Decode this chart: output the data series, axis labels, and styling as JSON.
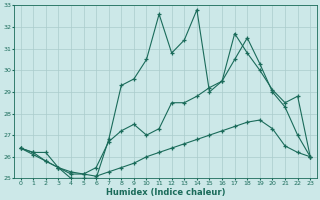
{
  "xlabel": "Humidex (Indice chaleur)",
  "bg_color": "#cce8e8",
  "grid_color": "#aacccc",
  "line_color": "#1a6b5a",
  "xlim": [
    -0.5,
    23.5
  ],
  "ylim": [
    25,
    33
  ],
  "yticks": [
    25,
    26,
    27,
    28,
    29,
    30,
    31,
    32,
    33
  ],
  "xticks": [
    0,
    1,
    2,
    3,
    4,
    5,
    6,
    7,
    8,
    9,
    10,
    11,
    12,
    13,
    14,
    15,
    16,
    17,
    18,
    19,
    20,
    21,
    22,
    23
  ],
  "series1_x": [
    0,
    1,
    2,
    3,
    4,
    5,
    6,
    7,
    8,
    9,
    10,
    11,
    12,
    13,
    14,
    15,
    16,
    17,
    18,
    19,
    20,
    21,
    22,
    23
  ],
  "series1_y": [
    26.4,
    26.2,
    26.2,
    25.5,
    25.0,
    25.0,
    25.0,
    26.8,
    29.3,
    29.6,
    30.5,
    32.6,
    30.8,
    31.4,
    32.8,
    29.0,
    29.5,
    31.7,
    30.8,
    30.0,
    29.1,
    28.5,
    28.8,
    26.0
  ],
  "series2_x": [
    0,
    1,
    2,
    3,
    4,
    5,
    6,
    7,
    8,
    9,
    10,
    11,
    12,
    13,
    14,
    15,
    16,
    17,
    18,
    19,
    20,
    21,
    22,
    23
  ],
  "series2_y": [
    26.4,
    26.2,
    25.8,
    25.5,
    25.2,
    25.2,
    25.5,
    26.7,
    27.2,
    27.5,
    27.0,
    27.3,
    28.5,
    28.5,
    28.8,
    29.2,
    29.5,
    30.5,
    31.5,
    30.3,
    29.0,
    28.3,
    27.0,
    26.0
  ],
  "series3_x": [
    0,
    1,
    2,
    3,
    4,
    5,
    6,
    7,
    8,
    9,
    10,
    11,
    12,
    13,
    14,
    15,
    16,
    17,
    18,
    19,
    20,
    21,
    22,
    23
  ],
  "series3_y": [
    26.4,
    26.1,
    25.8,
    25.5,
    25.3,
    25.2,
    25.1,
    25.3,
    25.5,
    25.7,
    26.0,
    26.2,
    26.4,
    26.6,
    26.8,
    27.0,
    27.2,
    27.4,
    27.6,
    27.7,
    27.3,
    26.5,
    26.2,
    26.0
  ]
}
